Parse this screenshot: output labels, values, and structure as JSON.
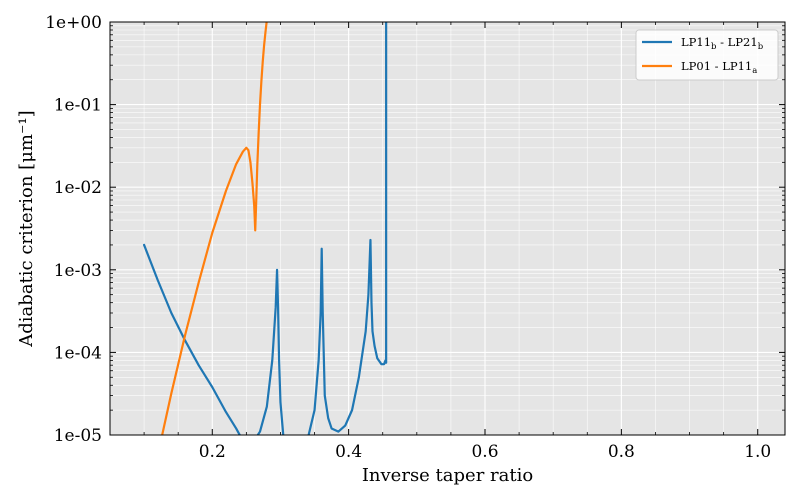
{
  "chart_data": {
    "type": "line",
    "xlabel": "Inverse taper ratio",
    "ylabel": "Adiabatic criterion [μm⁻¹]",
    "xlim": [
      0.05,
      1.04
    ],
    "ylim": [
      1e-05,
      1
    ],
    "yscale": "log",
    "grid": true,
    "minor_grid": true,
    "legend_position": "top-right",
    "background": "#e5e5e5",
    "x_ticks": [
      0.2,
      0.4,
      0.6,
      0.8,
      1.0
    ],
    "x_tick_labels": [
      "0.2",
      "0.4",
      "0.6",
      "0.8",
      "1.0"
    ],
    "y_ticks": [
      1e-05,
      0.0001,
      0.001,
      0.01,
      0.1,
      1
    ],
    "y_tick_labels": [
      "1e-05",
      "1e-04",
      "1e-03",
      "1e-02",
      "1e-01",
      "1e+00"
    ],
    "series": [
      {
        "name": "LP11b - LP21b",
        "legend": {
          "base1": "LP11",
          "sub1": "b",
          "sep": " - ",
          "base2": "LP21",
          "sub2": "b"
        },
        "color": "#1f77b4",
        "x": [
          0.1,
          0.12,
          0.14,
          0.16,
          0.18,
          0.2,
          0.22,
          0.235,
          0.245,
          0.25,
          0.255,
          0.26,
          0.27,
          0.28,
          0.288,
          0.293,
          0.295,
          0.2965,
          0.298,
          0.3,
          0.305,
          0.31,
          0.315,
          0.32,
          0.325,
          0.33,
          0.34,
          0.35,
          0.356,
          0.359,
          0.3605,
          0.362,
          0.365,
          0.37,
          0.375,
          0.385,
          0.395,
          0.405,
          0.415,
          0.425,
          0.429,
          0.432,
          0.4335,
          0.435,
          0.438,
          0.442,
          0.448,
          0.452,
          0.454,
          0.455,
          0.455
        ],
        "y": [
          0.002,
          0.00075,
          0.0003,
          0.00014,
          7e-05,
          3.8e-05,
          1.9e-05,
          1.2e-05,
          8.5e-06,
          7.2e-06,
          7.2e-06,
          8.2e-06,
          1.1e-05,
          2.2e-05,
          8e-05,
          0.00035,
          0.001,
          0.00035,
          8e-05,
          2.5e-05,
          8.2e-06,
          6.9e-06,
          8.1e-06,
          8.5e-06,
          6.8e-06,
          6.4e-06,
          9e-06,
          2e-05,
          8e-05,
          0.0003,
          0.0018,
          0.0003,
          3e-05,
          1.6e-05,
          1.2e-05,
          1.1e-05,
          1.3e-05,
          2e-05,
          5e-05,
          0.00018,
          0.0005,
          0.0023,
          0.0004,
          0.00018,
          0.00012,
          8.5e-05,
          7.2e-05,
          7.2e-05,
          8e-05,
          7.5e-05,
          1
        ]
      },
      {
        "name": "LP01 - LP11a",
        "legend": {
          "base1": "LP01",
          "sub1": "",
          "sep": " - ",
          "base2": "LP11",
          "sub2": "a"
        },
        "color": "#ff7f0e",
        "x": [
          0.12,
          0.14,
          0.16,
          0.18,
          0.2,
          0.22,
          0.235,
          0.245,
          0.25,
          0.253,
          0.256,
          0.259,
          0.2615,
          0.263,
          0.2645,
          0.266,
          0.268,
          0.27,
          0.272,
          0.274,
          0.276,
          0.278,
          0.28
        ],
        "y": [
          5.7e-06,
          3.2e-05,
          0.00016,
          0.0007,
          0.0028,
          0.009,
          0.019,
          0.027,
          0.03,
          0.028,
          0.02,
          0.011,
          0.006,
          0.003,
          0.007,
          0.018,
          0.045,
          0.1,
          0.19,
          0.33,
          0.52,
          0.75,
          1.05
        ]
      }
    ]
  }
}
